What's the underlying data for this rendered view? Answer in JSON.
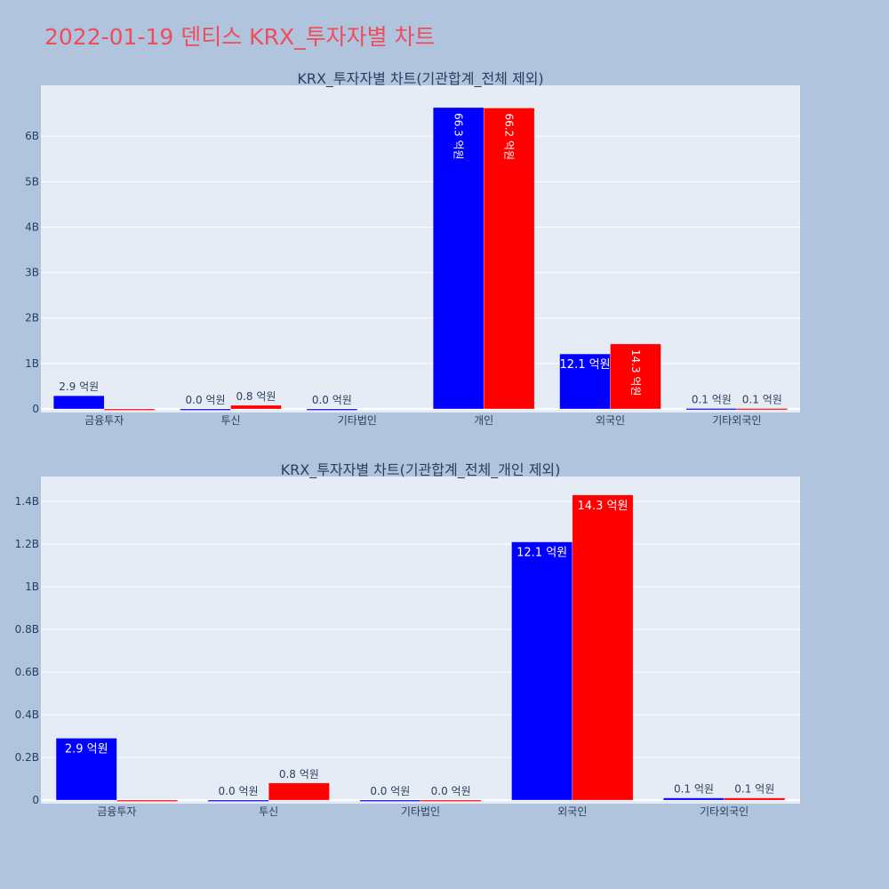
{
  "page": {
    "title": "2022-01-19 덴티스 KRX_투자자별 차트",
    "background": "#b0c4de",
    "title_color": "#ef4c5c"
  },
  "chart_data": [
    {
      "type": "bar",
      "title": "KRX_투자자별 차트(기관합계_전체 제외)",
      "categories": [
        "금융투자",
        "투신",
        "기타법인",
        "개인",
        "외국인",
        "기타외국인"
      ],
      "series": [
        {
          "color": "#0000ff",
          "values": [
            0.29,
            0.0,
            0.0,
            6.63,
            1.21,
            0.01
          ],
          "labels": [
            "2.9 억원",
            "0.0 억원",
            "0.0 억원",
            "66.3 억원",
            "12.1 억원",
            "0.1 억원"
          ]
        },
        {
          "color": "#ff0000",
          "values": [
            0.0,
            0.08,
            null,
            6.62,
            1.43,
            0.01
          ],
          "labels": [
            "",
            "0.8 억원",
            "",
            "66.2 억원",
            "14.3 억원",
            "0.1 억원"
          ]
        }
      ],
      "yticks": [
        0,
        1,
        2,
        3,
        4,
        5,
        6
      ],
      "ytick_labels": [
        "0",
        "1B",
        "2B",
        "3B",
        "4B",
        "5B",
        "6B"
      ],
      "ylim": [
        0,
        7.04
      ],
      "grid": true,
      "plot_bg": "#e5ecf6"
    },
    {
      "type": "bar",
      "title": "KRX_투자자별 차트(기관합계_전체_개인 제외)",
      "categories": [
        "금융투자",
        "투신",
        "기타법인",
        "외국인",
        "기타외국인"
      ],
      "series": [
        {
          "color": "#0000ff",
          "values": [
            0.29,
            0.0,
            0.0,
            1.21,
            0.01
          ],
          "labels": [
            "2.9 억원",
            "0.0 억원",
            "0.0 억원",
            "12.1 억원",
            "0.1 억원"
          ]
        },
        {
          "color": "#ff0000",
          "values": [
            0.0,
            0.08,
            0.0,
            1.43,
            0.01
          ],
          "labels": [
            "",
            "0.8 억원",
            "0.0 억원",
            "14.3 억원",
            "0.1 억원"
          ]
        }
      ],
      "yticks": [
        0,
        0.2,
        0.4,
        0.6,
        0.8,
        1.0,
        1.2,
        1.4
      ],
      "ytick_labels": [
        "0",
        "0.2B",
        "0.4B",
        "0.6B",
        "0.8B",
        "1B",
        "1.2B",
        "1.4B"
      ],
      "ylim": [
        0,
        1.5
      ],
      "grid": true,
      "plot_bg": "#e5ecf6"
    }
  ]
}
